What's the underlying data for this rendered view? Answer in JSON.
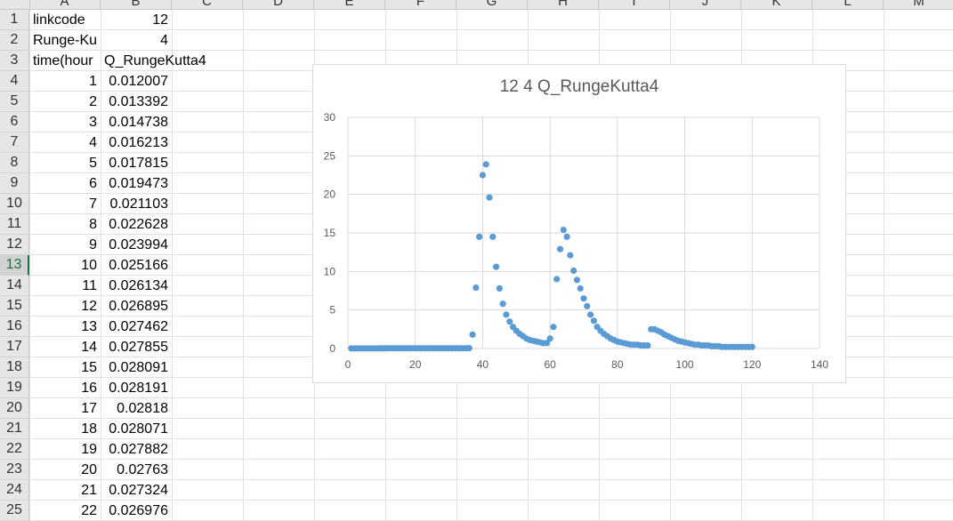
{
  "columns": [
    "A",
    "B",
    "C",
    "D",
    "E",
    "F",
    "G",
    "H",
    "I",
    "J",
    "K",
    "L",
    "M"
  ],
  "rows": [
    {
      "n": "1",
      "a": "linkcode",
      "b": "12"
    },
    {
      "n": "2",
      "a": "Runge-Ku",
      "b": "4"
    },
    {
      "n": "3",
      "a": "time(hour",
      "b": "Q_RungeKutta4"
    },
    {
      "n": "4",
      "a": "1",
      "b": "0.012007"
    },
    {
      "n": "5",
      "a": "2",
      "b": "0.013392"
    },
    {
      "n": "6",
      "a": "3",
      "b": "0.014738"
    },
    {
      "n": "7",
      "a": "4",
      "b": "0.016213"
    },
    {
      "n": "8",
      "a": "5",
      "b": "0.017815"
    },
    {
      "n": "9",
      "a": "6",
      "b": "0.019473"
    },
    {
      "n": "10",
      "a": "7",
      "b": "0.021103"
    },
    {
      "n": "11",
      "a": "8",
      "b": "0.022628"
    },
    {
      "n": "12",
      "a": "9",
      "b": "0.023994"
    },
    {
      "n": "13",
      "a": "10",
      "b": "0.025166"
    },
    {
      "n": "14",
      "a": "11",
      "b": "0.026134"
    },
    {
      "n": "15",
      "a": "12",
      "b": "0.026895"
    },
    {
      "n": "16",
      "a": "13",
      "b": "0.027462"
    },
    {
      "n": "17",
      "a": "14",
      "b": "0.027855"
    },
    {
      "n": "18",
      "a": "15",
      "b": "0.028091"
    },
    {
      "n": "19",
      "a": "16",
      "b": "0.028191"
    },
    {
      "n": "20",
      "a": "17",
      "b": "0.02818"
    },
    {
      "n": "21",
      "a": "18",
      "b": "0.028071"
    },
    {
      "n": "22",
      "a": "19",
      "b": "0.027882"
    },
    {
      "n": "23",
      "a": "20",
      "b": "0.02763"
    },
    {
      "n": "24",
      "a": "21",
      "b": "0.027324"
    },
    {
      "n": "25",
      "a": "22",
      "b": "0.026976"
    }
  ],
  "active_row": "13",
  "colors": {
    "marker": "#5b9bd5",
    "grid": "#d9d9d9",
    "header_bg": "#e6e6e6",
    "active": "#1e7145"
  },
  "chart_data": {
    "type": "scatter",
    "title": "12 4 Q_RungeKutta4",
    "xlim": [
      0,
      140
    ],
    "ylim": [
      0,
      30
    ],
    "xticks": [
      "0",
      "20",
      "40",
      "60",
      "80",
      "100",
      "120",
      "140"
    ],
    "yticks": [
      "0",
      "5",
      "10",
      "15",
      "20",
      "25",
      "30"
    ],
    "grid": true,
    "x": [
      1,
      2,
      3,
      4,
      5,
      6,
      7,
      8,
      9,
      10,
      11,
      12,
      13,
      14,
      15,
      16,
      17,
      18,
      19,
      20,
      21,
      22,
      23,
      24,
      25,
      26,
      27,
      28,
      29,
      30,
      31,
      32,
      33,
      34,
      35,
      36,
      37,
      38,
      39,
      40,
      41,
      42,
      43,
      44,
      45,
      46,
      47,
      48,
      49,
      50,
      51,
      52,
      53,
      54,
      55,
      56,
      57,
      58,
      59,
      60,
      61,
      62,
      63,
      64,
      65,
      66,
      67,
      68,
      69,
      70,
      71,
      72,
      73,
      74,
      75,
      76,
      77,
      78,
      79,
      80,
      81,
      82,
      83,
      84,
      85,
      86,
      87,
      88,
      89,
      90,
      91,
      92,
      93,
      94,
      95,
      96,
      97,
      98,
      99,
      100,
      101,
      102,
      103,
      104,
      105,
      106,
      107,
      108,
      109,
      110,
      111,
      112,
      113,
      114,
      115,
      116,
      117,
      118,
      119,
      120
    ],
    "y": [
      0.012,
      0.013,
      0.015,
      0.016,
      0.018,
      0.019,
      0.021,
      0.023,
      0.024,
      0.025,
      0.026,
      0.027,
      0.027,
      0.028,
      0.028,
      0.028,
      0.028,
      0.028,
      0.028,
      0.028,
      0.027,
      0.027,
      0.03,
      0.03,
      0.03,
      0.03,
      0.03,
      0.03,
      0.03,
      0.03,
      0.03,
      0.03,
      0.03,
      0.03,
      0.03,
      0.05,
      1.8,
      7.9,
      14.5,
      22.5,
      23.9,
      19.6,
      14.5,
      10.6,
      7.8,
      5.8,
      4.4,
      3.5,
      2.8,
      2.3,
      1.9,
      1.6,
      1.3,
      1.1,
      1.0,
      0.9,
      0.8,
      0.7,
      0.7,
      1.3,
      2.8,
      9.0,
      12.9,
      15.4,
      14.5,
      12.1,
      10.1,
      8.9,
      7.8,
      6.5,
      5.5,
      4.4,
      3.6,
      2.8,
      2.3,
      1.9,
      1.6,
      1.3,
      1.1,
      0.9,
      0.8,
      0.7,
      0.6,
      0.5,
      0.5,
      0.5,
      0.4,
      0.4,
      0.4,
      2.5,
      2.5,
      2.3,
      2.1,
      1.8,
      1.6,
      1.4,
      1.2,
      1.0,
      0.9,
      0.8,
      0.7,
      0.6,
      0.5,
      0.5,
      0.4,
      0.4,
      0.4,
      0.3,
      0.3,
      0.3,
      0.2,
      0.2,
      0.2,
      0.2,
      0.2,
      0.2,
      0.2,
      0.2,
      0.2,
      0.2
    ]
  }
}
